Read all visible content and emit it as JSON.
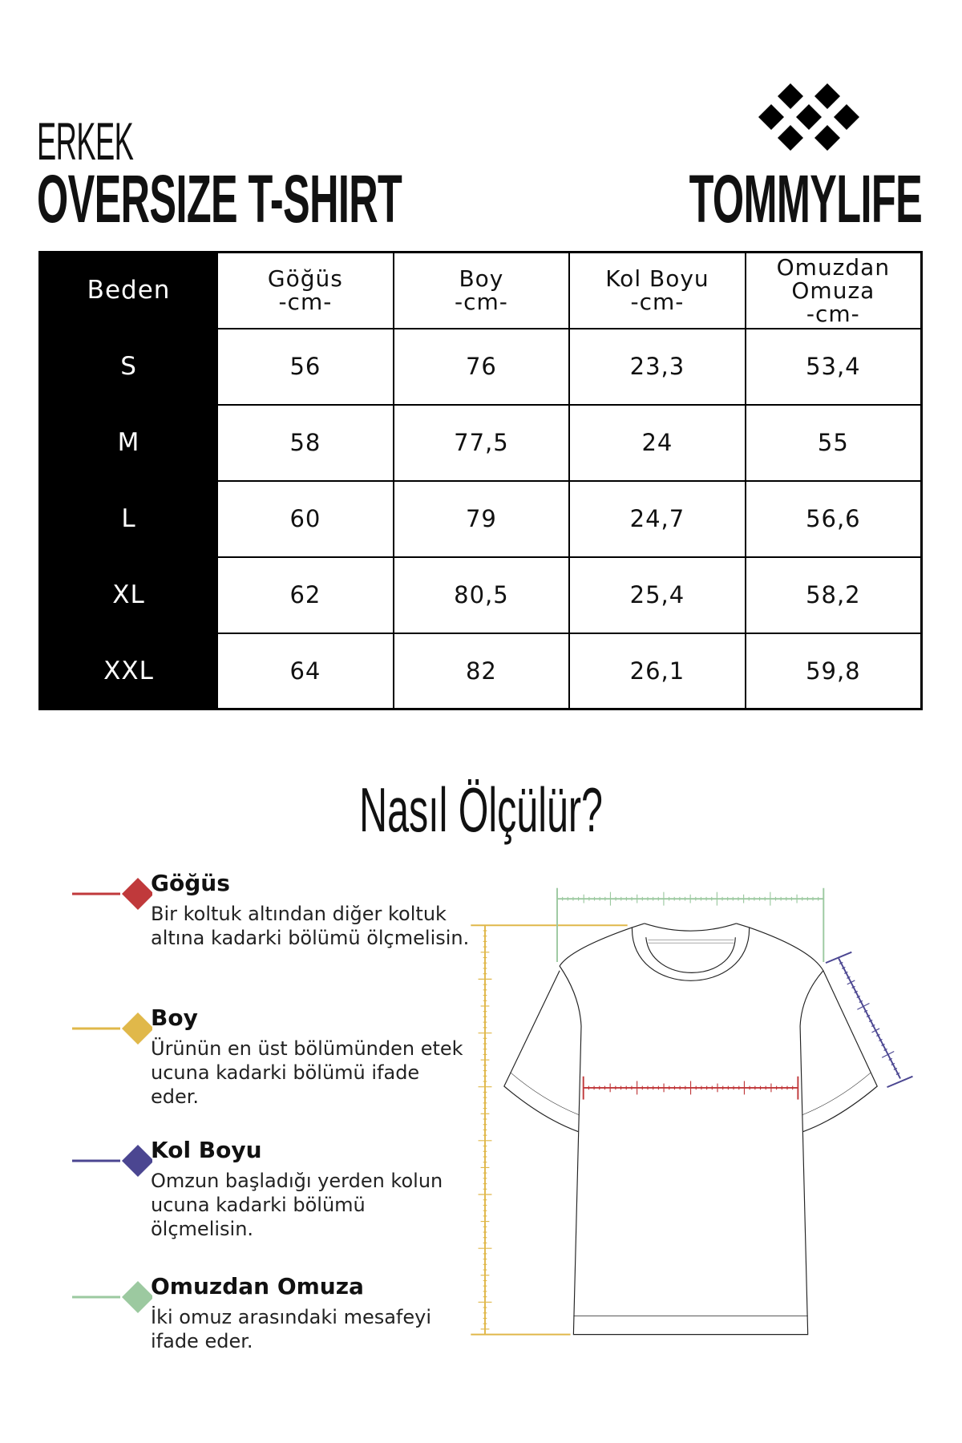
{
  "header": {
    "category": "ERKEK",
    "product": "OVERSIZE T-SHIRT",
    "brand": "TOMMYLIFE",
    "logo_icon": "diamond-cluster-icon"
  },
  "table": {
    "columns": [
      {
        "name": "Beden",
        "unit": ""
      },
      {
        "name": "Göğüs",
        "unit": "-cm-"
      },
      {
        "name": "Boy",
        "unit": "-cm-"
      },
      {
        "name": "Kol Boyu",
        "unit": "-cm-"
      },
      {
        "name": "Omuzdan Omuza",
        "name1": "Omuzdan",
        "name2": "Omuza",
        "unit": "-cm-"
      }
    ],
    "rows": [
      {
        "size": "S",
        "values": [
          "56",
          "76",
          "23,3",
          "53,4"
        ]
      },
      {
        "size": "M",
        "values": [
          "58",
          "77,5",
          "24",
          "55"
        ]
      },
      {
        "size": "L",
        "values": [
          "60",
          "79",
          "24,7",
          "56,6"
        ]
      },
      {
        "size": "XL",
        "values": [
          "62",
          "80,5",
          "25,4",
          "58,2"
        ]
      },
      {
        "size": "XXL",
        "values": [
          "64",
          "82",
          "26,1",
          "59,8"
        ]
      }
    ]
  },
  "guide": {
    "title": "Nasıl Ölçülür?",
    "items": [
      {
        "label": "Göğüs",
        "text": "Bir koltuk altından diğer koltuk altına kadarki bölümü ölçmelisin.",
        "color": "#c0393b"
      },
      {
        "label": "Boy",
        "text": "Ürünün en üst bölümünden etek ucuna kadarki bölümü ifade eder.",
        "color": "#e0b84a"
      },
      {
        "label": "Kol Boyu",
        "text": "Omzun başladığı yerden kolun ucuna kadarki bölümü ölçmelisin.",
        "color": "#4b4691"
      },
      {
        "label": "Omuzdan Omuza",
        "text": "İki omuz arasındaki mesafeyi ifade eder.",
        "color": "#9cc9a0"
      }
    ]
  }
}
